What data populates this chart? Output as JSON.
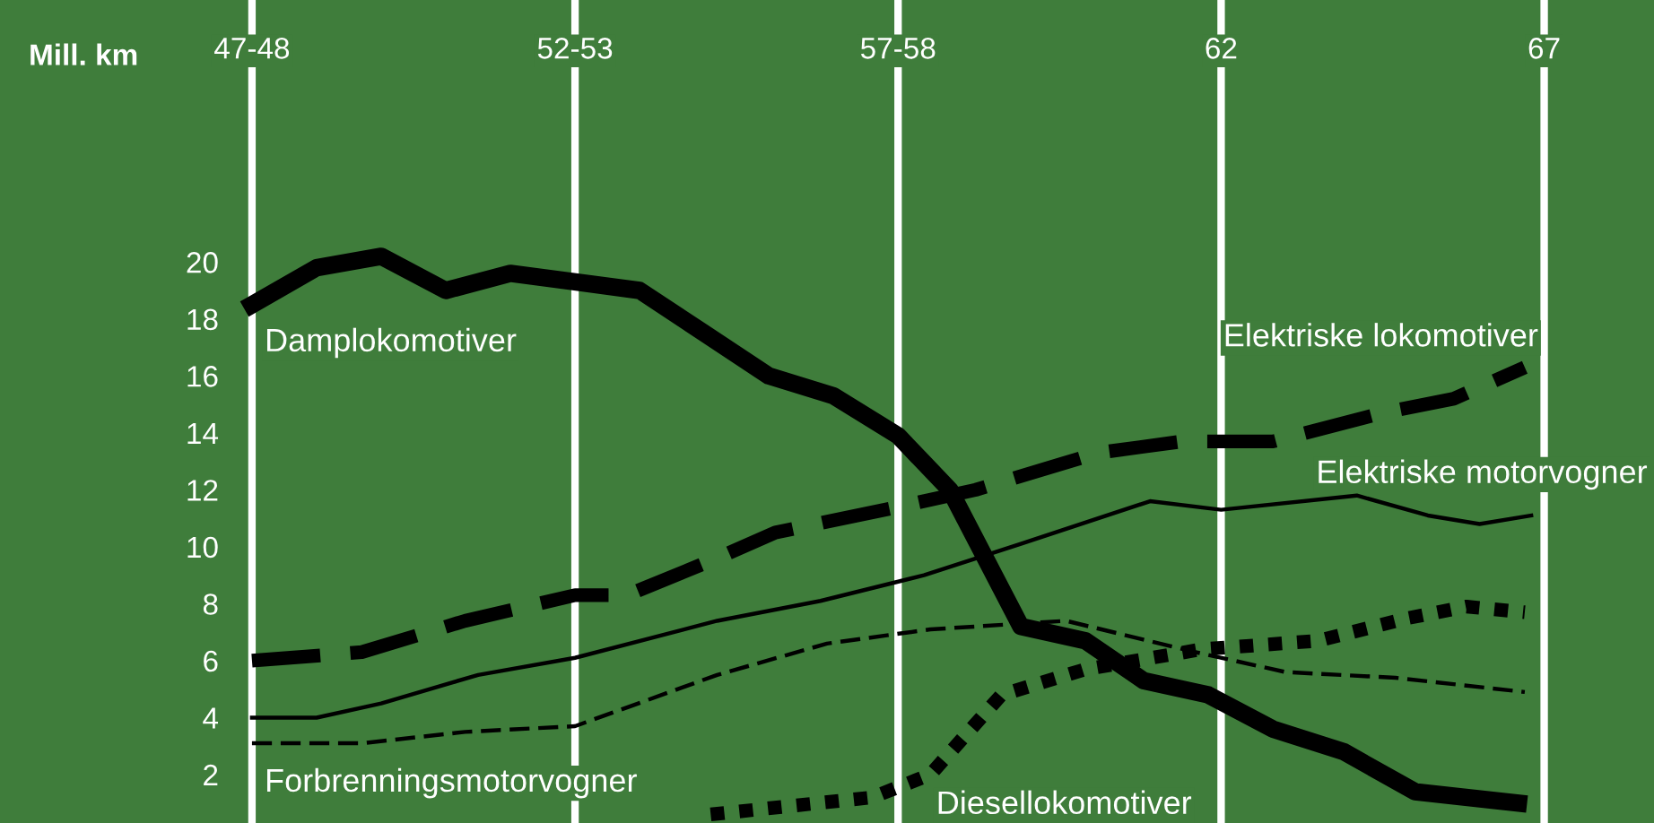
{
  "chart_data": {
    "type": "line",
    "ylabel": "Mill. km",
    "xlim": [
      1943.1,
      1968.7
    ],
    "ylim": [
      0.3,
      29.2
    ],
    "xticks": [
      {
        "value": 1947,
        "label": "47-48"
      },
      {
        "value": 1952,
        "label": "52-53"
      },
      {
        "value": 1957,
        "label": "57-58"
      },
      {
        "value": 1962,
        "label": "62"
      },
      {
        "value": 1967,
        "label": "67"
      }
    ],
    "yticks": [
      2,
      4,
      6,
      8,
      10,
      12,
      14,
      16,
      18,
      20
    ],
    "grid": "x",
    "legend": false,
    "marker": "none",
    "series": [
      {
        "name": "Damplokomotiver",
        "color": "#000000",
        "line_style": "solid",
        "x": [
          1947,
          1948,
          1949,
          1950,
          1951,
          1952,
          1953,
          1954,
          1955,
          1956,
          1957,
          1957.8,
          1958.9,
          1959.9,
          1960.8,
          1961.8,
          1962.8,
          1963.9,
          1965,
          1966.6
        ],
        "values": [
          18.5,
          19.8,
          20.2,
          19.0,
          19.6,
          19.3,
          19.0,
          17.5,
          16.0,
          15.3,
          13.9,
          12.0,
          7.2,
          6.7,
          5.3,
          4.8,
          3.6,
          2.8,
          1.4,
          1.0
        ]
      },
      {
        "name": "Elektriske lokomotiver",
        "color": "#000000",
        "line_style": "dashed",
        "x": [
          1947,
          1948.7,
          1950.3,
          1952,
          1952.8,
          1954.2,
          1955.1,
          1957,
          1958.2,
          1960.1,
          1961.4,
          1962.8,
          1964.5,
          1965.6,
          1966.7
        ],
        "values": [
          6.0,
          6.3,
          7.4,
          8.3,
          8.3,
          9.6,
          10.5,
          11.4,
          12.0,
          13.3,
          13.7,
          13.7,
          14.7,
          15.2,
          16.3
        ]
      },
      {
        "name": "Elektriske motorvogner",
        "color": "#000000",
        "line_style": "solid",
        "x": [
          1947,
          1948,
          1949,
          1950.5,
          1952,
          1954.2,
          1955.8,
          1957.4,
          1958.9,
          1960.9,
          1962,
          1964.1,
          1965.2,
          1966,
          1966.8
        ],
        "values": [
          4.0,
          4.0,
          4.5,
          5.5,
          6.1,
          7.4,
          8.1,
          9.0,
          10.1,
          11.6,
          11.3,
          11.8,
          11.1,
          10.8,
          11.1
        ]
      },
      {
        "name": "Forbrenningsmotorvogner",
        "color": "#000000",
        "line_style": "dashed",
        "x": [
          1947,
          1948.7,
          1950.3,
          1952,
          1954.2,
          1955.9,
          1957.5,
          1959.6,
          1961.6,
          1963,
          1964.7,
          1966.7
        ],
        "values": [
          3.1,
          3.1,
          3.5,
          3.7,
          5.5,
          6.6,
          7.1,
          7.4,
          6.3,
          5.6,
          5.4,
          4.9
        ]
      },
      {
        "name": "Diesellokomotiver",
        "color": "#000000",
        "line_style": "dotted",
        "x": [
          1954.1,
          1956.6,
          1957.5,
          1958.6,
          1959.9,
          1961.7,
          1963.5,
          1964.9,
          1965.8,
          1966.7
        ],
        "values": [
          0.6,
          1.2,
          2.0,
          4.8,
          5.7,
          6.4,
          6.7,
          7.5,
          7.9,
          7.7
        ]
      }
    ]
  }
}
